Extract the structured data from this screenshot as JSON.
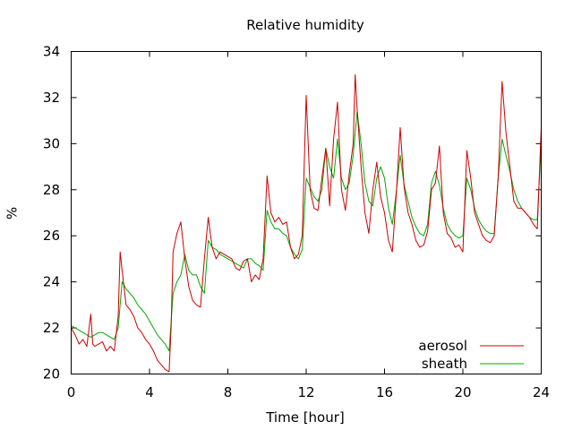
{
  "chart_data": {
    "type": "line",
    "title": "Relative humidity",
    "xlabel": "Time [hour]",
    "ylabel": "%",
    "xlim": [
      0,
      24
    ],
    "ylim": [
      20,
      34
    ],
    "x_ticks": [
      0,
      4,
      8,
      12,
      16,
      20,
      24
    ],
    "y_ticks": [
      20,
      22,
      24,
      26,
      28,
      30,
      32,
      34
    ],
    "x_tick_labels": [
      "0",
      "4",
      "8",
      "12",
      "16",
      "20",
      "24"
    ],
    "y_tick_labels": [
      "20",
      "22",
      "24",
      "26",
      "28",
      "30",
      "32",
      "34"
    ],
    "grid": false,
    "legend_position": "bottom-right",
    "series": [
      {
        "name": "aerosol",
        "color": "#cc0000",
        "x": [
          0.0,
          0.2,
          0.4,
          0.6,
          0.8,
          1.0,
          1.1,
          1.2,
          1.4,
          1.6,
          1.8,
          2.0,
          2.2,
          2.4,
          2.5,
          2.6,
          2.8,
          3.0,
          3.2,
          3.4,
          3.6,
          3.8,
          4.0,
          4.2,
          4.4,
          4.6,
          4.8,
          5.0,
          5.1,
          5.2,
          5.4,
          5.6,
          5.8,
          6.0,
          6.2,
          6.4,
          6.6,
          6.8,
          7.0,
          7.2,
          7.4,
          7.6,
          7.8,
          8.0,
          8.2,
          8.4,
          8.6,
          8.8,
          9.0,
          9.2,
          9.4,
          9.6,
          9.8,
          10.0,
          10.2,
          10.4,
          10.6,
          10.8,
          11.0,
          11.2,
          11.4,
          11.6,
          11.8,
          12.0,
          12.2,
          12.4,
          12.6,
          12.8,
          13.0,
          13.2,
          13.4,
          13.6,
          13.8,
          14.0,
          14.2,
          14.4,
          14.5,
          14.6,
          14.8,
          15.0,
          15.2,
          15.4,
          15.6,
          15.8,
          16.0,
          16.2,
          16.4,
          16.6,
          16.8,
          17.0,
          17.2,
          17.4,
          17.6,
          17.8,
          18.0,
          18.2,
          18.4,
          18.6,
          18.8,
          19.0,
          19.2,
          19.4,
          19.6,
          19.8,
          20.0,
          20.2,
          20.4,
          20.6,
          20.8,
          21.0,
          21.2,
          21.4,
          21.6,
          21.8,
          22.0,
          22.2,
          22.4,
          22.6,
          22.8,
          23.0,
          23.2,
          23.4,
          23.6,
          23.8,
          24.0
        ],
        "y": [
          22.0,
          21.7,
          21.3,
          21.5,
          21.2,
          22.6,
          21.3,
          21.2,
          21.3,
          21.4,
          21.0,
          21.2,
          21.0,
          22.5,
          25.3,
          24.5,
          23.0,
          22.8,
          22.5,
          22.0,
          21.8,
          21.5,
          21.3,
          21.0,
          20.6,
          20.4,
          20.2,
          20.1,
          22.0,
          25.3,
          26.1,
          26.6,
          25.0,
          23.8,
          23.2,
          23.0,
          22.9,
          25.0,
          26.8,
          25.5,
          25.0,
          25.3,
          25.2,
          25.1,
          25.0,
          24.6,
          24.5,
          24.9,
          25.0,
          24.0,
          24.3,
          24.1,
          25.0,
          28.6,
          27.0,
          26.6,
          26.8,
          26.5,
          26.6,
          25.5,
          25.0,
          25.2,
          26.0,
          32.1,
          28.0,
          27.2,
          27.1,
          28.5,
          29.8,
          27.3,
          30.2,
          31.8,
          28.0,
          27.1,
          28.7,
          30.0,
          33.0,
          31.5,
          29.0,
          27.0,
          26.1,
          28.0,
          29.2,
          27.7,
          27.0,
          25.8,
          25.3,
          27.8,
          30.7,
          28.1,
          27.0,
          26.5,
          25.8,
          25.5,
          25.6,
          26.2,
          28.0,
          28.3,
          29.9,
          27.0,
          26.1,
          25.9,
          25.5,
          25.6,
          25.3,
          29.7,
          28.5,
          27.0,
          26.5,
          26.0,
          25.8,
          25.7,
          26.0,
          28.5,
          32.7,
          30.5,
          29.0,
          27.5,
          27.2,
          27.2,
          27.0,
          26.8,
          26.5,
          26.3,
          30.7
        ]
      },
      {
        "name": "sheath",
        "color": "#00aa00",
        "x": [
          0.0,
          0.2,
          0.4,
          0.6,
          0.8,
          1.0,
          1.2,
          1.4,
          1.6,
          1.8,
          2.0,
          2.2,
          2.4,
          2.6,
          2.8,
          3.0,
          3.2,
          3.4,
          3.6,
          3.8,
          4.0,
          4.2,
          4.4,
          4.6,
          4.8,
          5.0,
          5.2,
          5.4,
          5.6,
          5.8,
          6.0,
          6.2,
          6.4,
          6.6,
          6.8,
          7.0,
          7.2,
          7.4,
          7.6,
          7.8,
          8.0,
          8.2,
          8.4,
          8.6,
          8.8,
          9.0,
          9.2,
          9.4,
          9.6,
          9.8,
          10.0,
          10.2,
          10.4,
          10.6,
          10.8,
          11.0,
          11.2,
          11.4,
          11.6,
          11.8,
          12.0,
          12.2,
          12.4,
          12.6,
          12.8,
          13.0,
          13.2,
          13.4,
          13.6,
          13.8,
          14.0,
          14.2,
          14.4,
          14.6,
          14.8,
          15.0,
          15.2,
          15.4,
          15.6,
          15.8,
          16.0,
          16.2,
          16.4,
          16.6,
          16.8,
          17.0,
          17.2,
          17.4,
          17.6,
          17.8,
          18.0,
          18.2,
          18.4,
          18.6,
          18.8,
          19.0,
          19.2,
          19.4,
          19.6,
          19.8,
          20.0,
          20.2,
          20.4,
          20.6,
          20.8,
          21.0,
          21.2,
          21.4,
          21.6,
          21.8,
          22.0,
          22.2,
          22.4,
          22.6,
          22.8,
          23.0,
          23.2,
          23.4,
          23.6,
          23.8,
          24.0
        ],
        "y": [
          22.1,
          22.0,
          21.9,
          21.8,
          21.7,
          21.6,
          21.7,
          21.8,
          21.8,
          21.7,
          21.6,
          21.5,
          22.0,
          24.0,
          23.7,
          23.5,
          23.3,
          23.0,
          22.8,
          22.6,
          22.3,
          22.0,
          21.7,
          21.5,
          21.3,
          21.0,
          23.5,
          24.0,
          24.3,
          25.2,
          24.5,
          24.3,
          24.3,
          23.8,
          23.5,
          25.8,
          25.5,
          25.4,
          25.2,
          25.1,
          25.0,
          24.9,
          24.8,
          24.7,
          24.6,
          25.0,
          25.0,
          24.8,
          24.7,
          24.5,
          27.1,
          26.6,
          26.3,
          26.3,
          26.1,
          26.0,
          25.5,
          25.2,
          25.0,
          25.4,
          28.5,
          28.1,
          27.7,
          27.5,
          28.0,
          29.8,
          29.0,
          28.5,
          30.2,
          28.5,
          28.0,
          28.3,
          29.5,
          31.4,
          30.0,
          28.3,
          27.5,
          27.3,
          28.5,
          29.0,
          28.5,
          27.2,
          26.5,
          27.9,
          29.5,
          28.2,
          27.5,
          26.8,
          26.4,
          26.1,
          26.0,
          26.5,
          28.3,
          28.8,
          28.2,
          27.2,
          26.5,
          26.2,
          26.0,
          25.9,
          26.0,
          28.5,
          28.0,
          27.2,
          26.7,
          26.4,
          26.2,
          26.1,
          26.1,
          28.5,
          30.2,
          29.5,
          28.8,
          28.0,
          27.5,
          27.2,
          27.0,
          26.8,
          26.7,
          26.7,
          30.0
        ]
      }
    ]
  }
}
